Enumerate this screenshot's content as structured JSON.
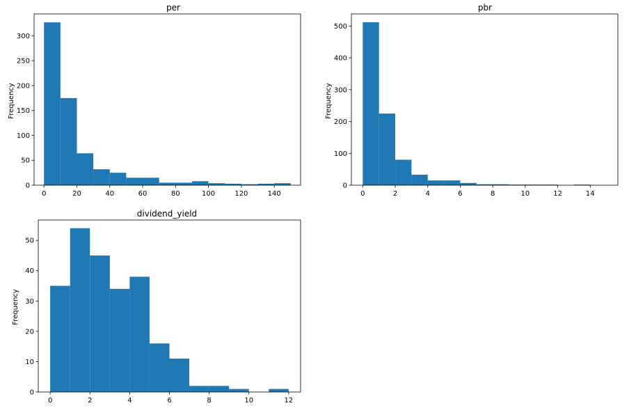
{
  "colors": {
    "bar": "#1f77b4",
    "axis": "#000000",
    "background": "#ffffff"
  },
  "chart_data": [
    {
      "type": "bar",
      "title": "per",
      "ylabel": "Frequency",
      "xlabel": "",
      "bin_edges": [
        0,
        10,
        20,
        30,
        40,
        50,
        60,
        70,
        80,
        90,
        100,
        110,
        120,
        130,
        140,
        150
      ],
      "values": [
        327,
        175,
        64,
        32,
        25,
        15,
        15,
        5,
        5,
        8,
        4,
        3,
        2,
        3,
        4
      ],
      "xlim": [
        -6,
        156
      ],
      "ylim": [
        0,
        344
      ],
      "xticks": [
        0,
        20,
        40,
        60,
        80,
        100,
        120,
        140
      ],
      "yticks": [
        0,
        50,
        100,
        150,
        200,
        250,
        300
      ],
      "grid": false
    },
    {
      "type": "bar",
      "title": "pbr",
      "ylabel": "Frequency",
      "xlabel": "",
      "bin_edges": [
        0,
        1,
        2,
        3,
        4,
        5,
        6,
        7,
        8,
        9,
        10,
        11,
        12,
        13,
        14,
        15
      ],
      "values": [
        512,
        225,
        80,
        33,
        15,
        15,
        7,
        3,
        3,
        2,
        2,
        2,
        0,
        2,
        0
      ],
      "xlim": [
        -0.7,
        15.7
      ],
      "ylim": [
        0,
        538
      ],
      "xticks": [
        0,
        2,
        4,
        6,
        8,
        10,
        12,
        14
      ],
      "yticks": [
        0,
        100,
        200,
        300,
        400,
        500
      ],
      "grid": false
    },
    {
      "type": "bar",
      "title": "dividend_yield",
      "ylabel": "Frequency",
      "xlabel": "",
      "bin_edges": [
        0,
        1,
        2,
        3,
        4,
        5,
        6,
        7,
        8,
        9,
        10,
        11,
        12
      ],
      "values": [
        35,
        54,
        45,
        34,
        38,
        16,
        11,
        2,
        2,
        1,
        0,
        1
      ],
      "xlim": [
        -0.6,
        12.6
      ],
      "ylim": [
        0,
        56.7
      ],
      "xticks": [
        0,
        2,
        4,
        6,
        8,
        10,
        12
      ],
      "yticks": [
        0,
        10,
        20,
        30,
        40,
        50
      ],
      "grid": false
    }
  ]
}
